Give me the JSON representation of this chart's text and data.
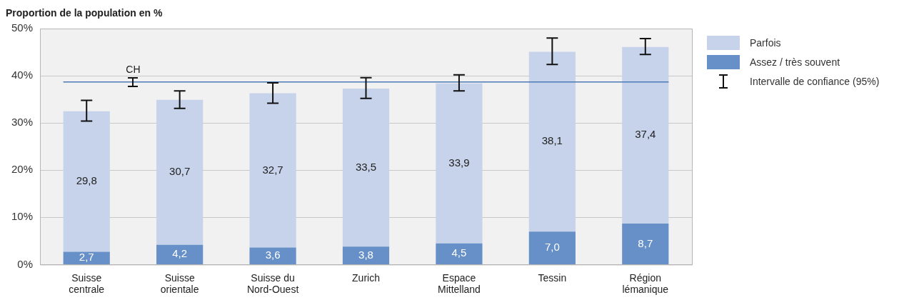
{
  "chart_data": {
    "type": "bar",
    "stacked": true,
    "ylabel": "Proportion de la population en %",
    "categories": [
      "Suisse centrale",
      "Suisse orientale",
      "Suisse du Nord-Ouest",
      "Zurich",
      "Espace Mittelland",
      "Tessin",
      "Région lémanique"
    ],
    "series": [
      {
        "name": "Assez / très souvent",
        "color": "#6790c9",
        "values": [
          2.7,
          4.2,
          3.6,
          3.8,
          4.5,
          7.0,
          8.7
        ],
        "value_labels": [
          "2,7",
          "4,2",
          "3,6",
          "3,8",
          "4,5",
          "7,0",
          "8,7"
        ]
      },
      {
        "name": "Parfois",
        "color": "#c6d3ea",
        "values": [
          29.8,
          30.7,
          32.7,
          33.5,
          33.9,
          38.1,
          37.4
        ],
        "value_labels": [
          "29,8",
          "30,7",
          "32,7",
          "33,5",
          "33,9",
          "38,1",
          "37,4"
        ],
        "errors": [
          [
            30.4,
            34.8
          ],
          [
            33.1,
            36.8
          ],
          [
            34.2,
            38.5
          ],
          [
            35.2,
            39.6
          ],
          [
            36.8,
            40.2
          ],
          [
            42.4,
            48.0
          ],
          [
            44.5,
            47.9
          ]
        ]
      }
    ],
    "ylim": [
      0,
      50
    ],
    "yticks": [
      {
        "value": 0,
        "label": "0%"
      },
      {
        "value": 10,
        "label": "10%"
      },
      {
        "value": 20,
        "label": "20%"
      },
      {
        "value": 30,
        "label": "30%"
      },
      {
        "value": 40,
        "label": "40%"
      },
      {
        "value": 50,
        "label": "50%"
      }
    ],
    "grid": "y",
    "legend": "top right",
    "ref_lines": [
      {
        "axis": "y",
        "value": 38.7,
        "label": "CH",
        "color": "#4a7ab5"
      }
    ],
    "annotations": [
      "Intervalle de confiance (95%)"
    ]
  }
}
